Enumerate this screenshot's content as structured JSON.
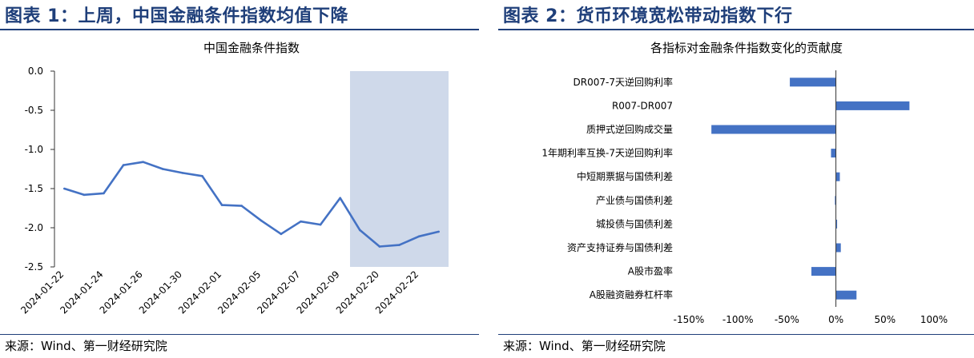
{
  "left_panel": {
    "figure_title": "图表 1：上周，中国金融条件指数均值下降",
    "source": "来源：Wind、第一财经研究院"
  },
  "right_panel": {
    "figure_title": "图表 2：货币环境宽松带动指数下行",
    "source": "来源：Wind、第一财经研究院"
  },
  "chart_data": [
    {
      "type": "line",
      "title": "中国金融条件指数",
      "ylim": [
        -2.5,
        0.0
      ],
      "yticks": [
        0.0,
        -0.5,
        -1.0,
        -1.5,
        -2.0,
        -2.5
      ],
      "ytick_labels": [
        "0.0",
        "-0.5",
        "-1.0",
        "-1.5",
        "-2.0",
        "-2.5"
      ],
      "x_tick_labels": [
        "2024-01-22",
        "2024-01-24",
        "2024-01-26",
        "2024-01-30",
        "2024-02-01",
        "2024-02-05",
        "2024-02-07",
        "2024-02-09",
        "2024-02-20",
        "2024-02-22"
      ],
      "x": [
        "2024-01-22",
        "2024-01-23",
        "2024-01-24",
        "2024-01-25",
        "2024-01-26",
        "2024-01-29",
        "2024-01-30",
        "2024-01-31",
        "2024-02-01",
        "2024-02-02",
        "2024-02-05",
        "2024-02-06",
        "2024-02-07",
        "2024-02-08",
        "2024-02-09",
        "2024-02-19",
        "2024-02-20",
        "2024-02-21",
        "2024-02-22",
        "2024-02-23"
      ],
      "series": [
        {
          "values": [
            -1.5,
            -1.58,
            -1.56,
            -1.2,
            -1.16,
            -1.25,
            -1.3,
            -1.34,
            -1.71,
            -1.72,
            -1.91,
            -2.08,
            -1.92,
            -1.96,
            -1.62,
            -2.03,
            -2.24,
            -2.22,
            -2.11,
            -2.05
          ],
          "color": "#4472c4"
        }
      ],
      "highlight": {
        "from": "2024-02-19",
        "to": "2024-02-23",
        "color": "#cfd9ea"
      },
      "grid": false
    },
    {
      "type": "bar",
      "orientation": "horizontal",
      "title": "各指标对金融条件指数变化的贡献度",
      "categories": [
        "DR007-7天逆回购利率",
        "R007-DR007",
        "质押式逆回购成交量",
        "1年期利率互换-7天逆回购利率",
        "中短期票据与国债利差",
        "产业债与国债利差",
        "城投债与国债利差",
        "资产支持证券与国债利差",
        "A股市盈率",
        "A股融资融券杠杆率"
      ],
      "values": [
        -47,
        75,
        -127,
        -5,
        4,
        -1,
        1,
        5,
        -25,
        21
      ],
      "xlim": [
        -150,
        100
      ],
      "xticks": [
        -150,
        -100,
        -50,
        0,
        50,
        100
      ],
      "xtick_labels": [
        "-150%",
        "-100%",
        "-50%",
        "0%",
        "50%",
        "100%"
      ],
      "color": "#4472c4",
      "grid": false
    }
  ]
}
